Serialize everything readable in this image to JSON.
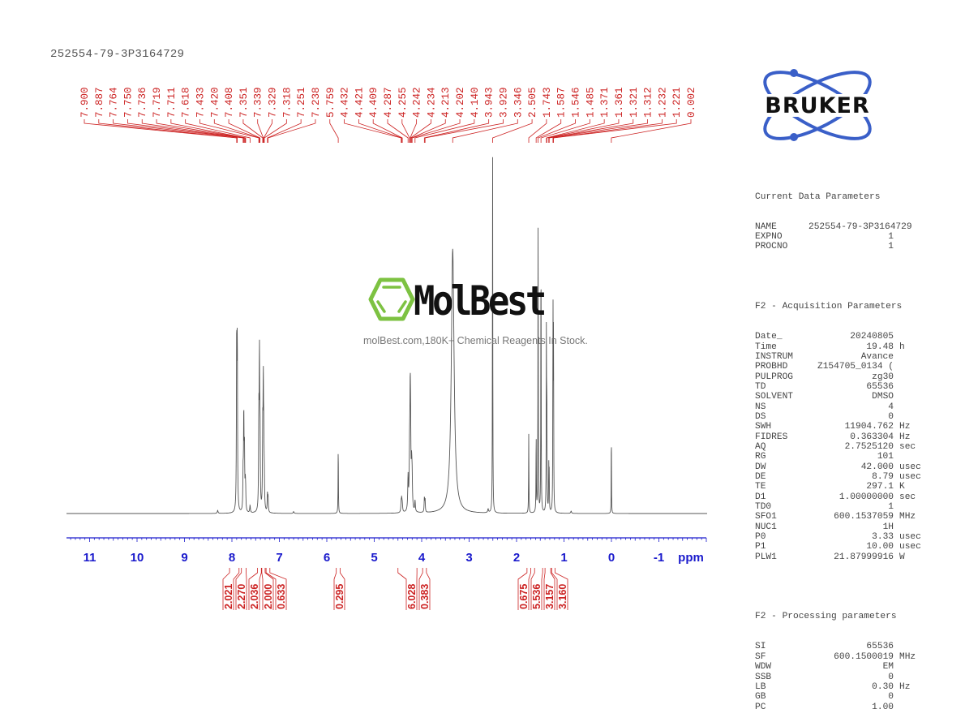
{
  "header": {
    "sample_id": "252554-79-3P3164729"
  },
  "watermark": {
    "brand": "MolBest",
    "tagline": "molBest.com,180K+ Chemical Reagents In Stock.",
    "accent_color": "#7dc242"
  },
  "logo": {
    "text": "BRUKER",
    "orbit_color": "#3a5fc8"
  },
  "colors": {
    "peak_label": "#cc2222",
    "axis": "#1a1acc",
    "spectrum": "#555555"
  },
  "parameters": {
    "current": {
      "title": "Current Data Parameters",
      "rows": [
        {
          "k": "NAME",
          "v": "252554-79-3P3164729",
          "u": ""
        },
        {
          "k": "EXPNO",
          "v": "1",
          "u": ""
        },
        {
          "k": "PROCNO",
          "v": "1",
          "u": ""
        }
      ]
    },
    "acquisition": {
      "title": "F2 - Acquisition Parameters",
      "rows": [
        {
          "k": "Date_",
          "v": "20240805",
          "u": ""
        },
        {
          "k": "Time",
          "v": "19.48",
          "u": "h"
        },
        {
          "k": "INSTRUM",
          "v": "Avance",
          "u": ""
        },
        {
          "k": "PROBHD",
          "v": "Z154705_0134 (",
          "u": ""
        },
        {
          "k": "PULPROG",
          "v": "zg30",
          "u": ""
        },
        {
          "k": "TD",
          "v": "65536",
          "u": ""
        },
        {
          "k": "SOLVENT",
          "v": "DMSO",
          "u": ""
        },
        {
          "k": "NS",
          "v": "4",
          "u": ""
        },
        {
          "k": "DS",
          "v": "0",
          "u": ""
        },
        {
          "k": "SWH",
          "v": "11904.762",
          "u": "Hz"
        },
        {
          "k": "FIDRES",
          "v": "0.363304",
          "u": "Hz"
        },
        {
          "k": "AQ",
          "v": "2.7525120",
          "u": "sec"
        },
        {
          "k": "RG",
          "v": "101",
          "u": ""
        },
        {
          "k": "DW",
          "v": "42.000",
          "u": "usec"
        },
        {
          "k": "DE",
          "v": "8.79",
          "u": "usec"
        },
        {
          "k": "TE",
          "v": "297.1",
          "u": "K"
        },
        {
          "k": "D1",
          "v": "1.00000000",
          "u": "sec"
        },
        {
          "k": "TD0",
          "v": "1",
          "u": ""
        },
        {
          "k": "SFO1",
          "v": "600.1537059",
          "u": "MHz"
        },
        {
          "k": "NUC1",
          "v": "1H",
          "u": ""
        },
        {
          "k": "P0",
          "v": "3.33",
          "u": "usec"
        },
        {
          "k": "P1",
          "v": "10.00",
          "u": "usec"
        },
        {
          "k": "PLW1",
          "v": "21.87999916",
          "u": "W"
        }
      ]
    },
    "processing": {
      "title": "F2 - Processing parameters",
      "rows": [
        {
          "k": "SI",
          "v": "65536",
          "u": ""
        },
        {
          "k": "SF",
          "v": "600.1500019",
          "u": "MHz"
        },
        {
          "k": "WDW",
          "v": "EM",
          "u": ""
        },
        {
          "k": "SSB",
          "v": "0",
          "u": ""
        },
        {
          "k": "LB",
          "v": "0.30",
          "u": "Hz"
        },
        {
          "k": "GB",
          "v": "0",
          "u": ""
        },
        {
          "k": "PC",
          "v": "1.00",
          "u": ""
        }
      ]
    }
  },
  "chart_data": {
    "type": "line",
    "title": "252554-79-3P3164729",
    "xlabel": "ppm",
    "ylabel": "",
    "xlim": [
      11.5,
      -2.0
    ],
    "x_reversed": true,
    "x_ticks": [
      11,
      10,
      9,
      8,
      7,
      6,
      5,
      4,
      3,
      2,
      1,
      0,
      -1
    ],
    "x_tick_labels": [
      "11",
      "10",
      "9",
      "8",
      "7",
      "6",
      "5",
      "4",
      "3",
      "2",
      "1",
      "0",
      "-1"
    ],
    "grid": false,
    "peak_labels": [
      "7.900",
      "7.887",
      "7.764",
      "7.750",
      "7.736",
      "7.719",
      "7.711",
      "7.618",
      "7.433",
      "7.420",
      "7.408",
      "7.351",
      "7.339",
      "7.329",
      "7.318",
      "7.251",
      "7.238",
      "5.759",
      "4.432",
      "4.421",
      "4.409",
      "4.287",
      "4.255",
      "4.242",
      "4.234",
      "4.213",
      "4.202",
      "4.140",
      "3.943",
      "3.929",
      "3.346",
      "2.505",
      "1.743",
      "1.587",
      "1.546",
      "1.485",
      "1.371",
      "1.361",
      "1.321",
      "1.312",
      "1.232",
      "1.221",
      "0.002"
    ],
    "peaks": [
      {
        "ppm": 7.9,
        "h": 0.46,
        "w": 0.006
      },
      {
        "ppm": 7.887,
        "h": 0.44,
        "w": 0.006
      },
      {
        "ppm": 7.764,
        "h": 0.1,
        "w": 0.006
      },
      {
        "ppm": 7.75,
        "h": 0.26,
        "w": 0.006
      },
      {
        "ppm": 7.736,
        "h": 0.16,
        "w": 0.006
      },
      {
        "ppm": 7.719,
        "h": 0.06,
        "w": 0.006
      },
      {
        "ppm": 7.711,
        "h": 0.05,
        "w": 0.006
      },
      {
        "ppm": 7.618,
        "h": 0.02,
        "w": 0.008
      },
      {
        "ppm": 7.433,
        "h": 0.24,
        "w": 0.006
      },
      {
        "ppm": 7.42,
        "h": 0.4,
        "w": 0.006
      },
      {
        "ppm": 7.408,
        "h": 0.2,
        "w": 0.006
      },
      {
        "ppm": 7.351,
        "h": 0.2,
        "w": 0.006
      },
      {
        "ppm": 7.339,
        "h": 0.32,
        "w": 0.006
      },
      {
        "ppm": 7.329,
        "h": 0.16,
        "w": 0.006
      },
      {
        "ppm": 7.318,
        "h": 0.08,
        "w": 0.006
      },
      {
        "ppm": 7.251,
        "h": 0.05,
        "w": 0.006
      },
      {
        "ppm": 7.238,
        "h": 0.04,
        "w": 0.006
      },
      {
        "ppm": 8.3,
        "h": 0.008,
        "w": 0.01
      },
      {
        "ppm": 6.7,
        "h": 0.005,
        "w": 0.01
      },
      {
        "ppm": 5.759,
        "h": 0.19,
        "w": 0.004
      },
      {
        "ppm": 4.432,
        "h": 0.025,
        "w": 0.008
      },
      {
        "ppm": 4.421,
        "h": 0.03,
        "w": 0.008
      },
      {
        "ppm": 4.409,
        "h": 0.02,
        "w": 0.008
      },
      {
        "ppm": 4.287,
        "h": 0.09,
        "w": 0.008
      },
      {
        "ppm": 4.255,
        "h": 0.14,
        "w": 0.008
      },
      {
        "ppm": 4.242,
        "h": 0.26,
        "w": 0.008
      },
      {
        "ppm": 4.234,
        "h": 0.15,
        "w": 0.008
      },
      {
        "ppm": 4.213,
        "h": 0.1,
        "w": 0.008
      },
      {
        "ppm": 4.202,
        "h": 0.08,
        "w": 0.008
      },
      {
        "ppm": 4.14,
        "h": 0.03,
        "w": 0.008
      },
      {
        "ppm": 3.943,
        "h": 0.04,
        "w": 0.006
      },
      {
        "ppm": 3.929,
        "h": 0.035,
        "w": 0.006
      },
      {
        "ppm": 3.346,
        "h": 0.72,
        "w": 0.035
      },
      {
        "ppm": 2.505,
        "h": 1.0,
        "w": 0.004
      },
      {
        "ppm": 2.6,
        "h": 0.01,
        "w": 0.01
      },
      {
        "ppm": 1.743,
        "h": 0.22,
        "w": 0.004
      },
      {
        "ppm": 1.587,
        "h": 0.22,
        "w": 0.004
      },
      {
        "ppm": 1.546,
        "h": 0.82,
        "w": 0.004
      },
      {
        "ppm": 1.485,
        "h": 0.77,
        "w": 0.004
      },
      {
        "ppm": 1.371,
        "h": 0.5,
        "w": 0.004
      },
      {
        "ppm": 1.361,
        "h": 0.3,
        "w": 0.004
      },
      {
        "ppm": 1.321,
        "h": 0.12,
        "w": 0.004
      },
      {
        "ppm": 1.312,
        "h": 0.1,
        "w": 0.004
      },
      {
        "ppm": 1.232,
        "h": 0.56,
        "w": 0.004
      },
      {
        "ppm": 1.221,
        "h": 0.48,
        "w": 0.004
      },
      {
        "ppm": 0.85,
        "h": 0.006,
        "w": 0.01
      },
      {
        "ppm": 0.002,
        "h": 0.26,
        "w": 0.003
      }
    ],
    "integrals": [
      {
        "value": "2.021",
        "from": 8.05,
        "to": 7.85,
        "center": 7.89
      },
      {
        "value": "2.270",
        "from": 7.8,
        "to": 7.7,
        "center": 7.75
      },
      {
        "value": "2.036",
        "from": 7.46,
        "to": 7.38,
        "center": 7.42
      },
      {
        "value": "2.000",
        "from": 7.37,
        "to": 7.3,
        "center": 7.34
      },
      {
        "value": "0.633",
        "from": 7.28,
        "to": 7.2,
        "center": 7.24
      },
      {
        "value": "0.295",
        "from": 5.8,
        "to": 5.72,
        "center": 5.76
      },
      {
        "value": "6.028",
        "from": 4.5,
        "to": 4.1,
        "center": 4.24
      },
      {
        "value": "0.383",
        "from": 3.98,
        "to": 3.9,
        "center": 3.94
      },
      {
        "value": "0.675",
        "from": 1.78,
        "to": 1.7,
        "center": 1.74
      },
      {
        "value": "5.536",
        "from": 1.62,
        "to": 1.45,
        "center": 1.54
      },
      {
        "value": "3.157",
        "from": 1.4,
        "to": 1.28,
        "center": 1.35
      },
      {
        "value": "3.160",
        "from": 1.26,
        "to": 1.19,
        "center": 1.23
      }
    ]
  }
}
